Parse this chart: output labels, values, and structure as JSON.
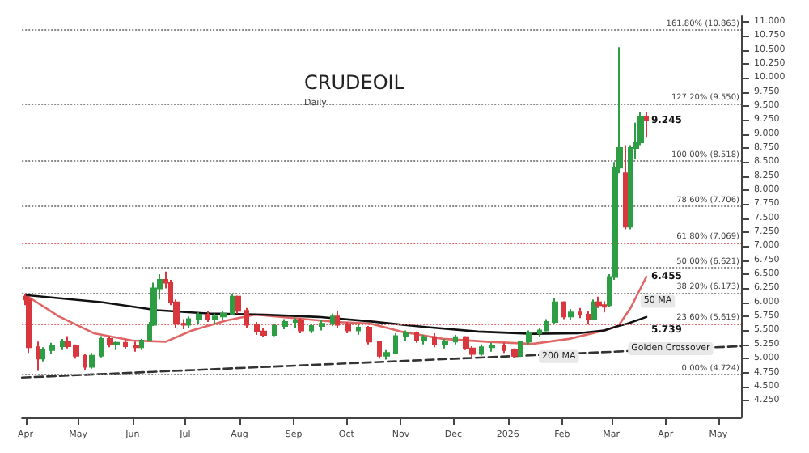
{
  "chart_data": {
    "type": "candlestick",
    "title": "CRUDEOIL",
    "subtitle": "Daily",
    "xlim": [
      "2025-03-30",
      "2026-05-14"
    ],
    "xticks": [
      {
        "value": "2025-04-01",
        "label": "Apr"
      },
      {
        "value": "2025-05-01",
        "label": "May"
      },
      {
        "value": "2025-06-01",
        "label": "Jun"
      },
      {
        "value": "2025-07-01",
        "label": "Jul"
      },
      {
        "value": "2025-08-01",
        "label": "Aug"
      },
      {
        "value": "2025-09-01",
        "label": "Sep"
      },
      {
        "value": "2025-10-01",
        "label": "Oct"
      },
      {
        "value": "2025-11-01",
        "label": "Nov"
      },
      {
        "value": "2025-12-01",
        "label": "Dec"
      },
      {
        "value": "2026-01-01",
        "label": "2026"
      },
      {
        "value": "2026-02-01",
        "label": "Feb"
      },
      {
        "value": "2026-03-01",
        "label": "Mar"
      },
      {
        "value": "2026-04-01",
        "label": "Apr"
      },
      {
        "value": "2026-05-01",
        "label": "May"
      }
    ],
    "ylim": [
      3.95,
      11.1
    ],
    "yticks": [
      {
        "value": 4.25,
        "label": "4.250"
      },
      {
        "value": 4.5,
        "label": "4.500"
      },
      {
        "value": 4.75,
        "label": "4.750"
      },
      {
        "value": 5,
        "label": "5.000"
      },
      {
        "value": 5.25,
        "label": "5.250"
      },
      {
        "value": 5.5,
        "label": "5.500"
      },
      {
        "value": 5.75,
        "label": "5.750"
      },
      {
        "value": 6,
        "label": "6.000"
      },
      {
        "value": 6.25,
        "label": "6.250"
      },
      {
        "value": 6.5,
        "label": "6.500"
      },
      {
        "value": 6.75,
        "label": "6.750"
      },
      {
        "value": 7,
        "label": "7.000"
      },
      {
        "value": 7.25,
        "label": "7.250"
      },
      {
        "value": 7.5,
        "label": "7.500"
      },
      {
        "value": 7.75,
        "label": "7.750"
      },
      {
        "value": 8,
        "label": "8.000"
      },
      {
        "value": 8.25,
        "label": "8.250"
      },
      {
        "value": 8.5,
        "label": "8.500"
      },
      {
        "value": 8.75,
        "label": "8.750"
      },
      {
        "value": 9,
        "label": "9.000"
      },
      {
        "value": 9.25,
        "label": "9.250"
      },
      {
        "value": 9.5,
        "label": "9.500"
      },
      {
        "value": 9.75,
        "label": "9.750"
      },
      {
        "value": 10,
        "label": "10.000"
      },
      {
        "value": 10.25,
        "label": "10.250"
      },
      {
        "value": 10.5,
        "label": "10.500"
      },
      {
        "value": 10.75,
        "label": "10.750"
      },
      {
        "value": 11,
        "label": "11.000"
      }
    ],
    "grid": false,
    "series": [
      {
        "type": "candlestick",
        "x": [
          "2025-04-01",
          "2025-04-03",
          "2025-04-08",
          "2025-04-11",
          "2025-04-16",
          "2025-04-22",
          "2025-04-25",
          "2025-04-30",
          "2025-05-05",
          "2025-05-09",
          "2025-05-14",
          "2025-05-19",
          "2025-05-23",
          "2025-05-28",
          "2025-06-03",
          "2025-06-06",
          "2025-06-11",
          "2025-06-13",
          "2025-06-17",
          "2025-06-20",
          "2025-06-23",
          "2025-06-26",
          "2025-06-30",
          "2025-07-03",
          "2025-07-09",
          "2025-07-14",
          "2025-07-18",
          "2025-07-23",
          "2025-07-28",
          "2025-07-31",
          "2025-08-05",
          "2025-08-11",
          "2025-08-15",
          "2025-08-21",
          "2025-08-27",
          "2025-09-02",
          "2025-09-05",
          "2025-09-11",
          "2025-09-17",
          "2025-09-23",
          "2025-09-26",
          "2025-10-02",
          "2025-10-08",
          "2025-10-14",
          "2025-10-20",
          "2025-10-24",
          "2025-10-29",
          "2025-11-04",
          "2025-11-10",
          "2025-11-14",
          "2025-11-20",
          "2025-11-26",
          "2025-12-02",
          "2025-12-08",
          "2025-12-12",
          "2025-12-17",
          "2025-12-23",
          "2025-12-30",
          "2026-01-05",
          "2026-01-08",
          "2026-01-13",
          "2026-01-19",
          "2026-01-23",
          "2026-01-28",
          "2026-02-02",
          "2026-02-06",
          "2026-02-11",
          "2026-02-16",
          "2026-02-19",
          "2026-02-22",
          "2026-02-25",
          "2026-02-28",
          "2026-03-03",
          "2026-03-06",
          "2026-03-09",
          "2026-03-12",
          "2026-03-15",
          "2026-03-18",
          "2026-03-21"
        ],
        "ohlc": [
          [
            6.1,
            6.15,
            5.95,
            6.05
          ],
          [
            6.05,
            6.08,
            5.1,
            5.2
          ],
          [
            5.2,
            5.3,
            4.78,
            5.0
          ],
          [
            5.0,
            5.2,
            4.95,
            5.15
          ],
          [
            5.15,
            5.28,
            5.08,
            5.22
          ],
          [
            5.22,
            5.35,
            5.15,
            5.3
          ],
          [
            5.3,
            5.4,
            5.18,
            5.22
          ],
          [
            5.22,
            5.25,
            5.0,
            5.05
          ],
          [
            5.05,
            5.08,
            4.8,
            4.85
          ],
          [
            4.85,
            5.1,
            4.82,
            5.05
          ],
          [
            5.05,
            5.4,
            5.02,
            5.35
          ],
          [
            5.35,
            5.4,
            5.2,
            5.25
          ],
          [
            5.25,
            5.32,
            5.15,
            5.28
          ],
          [
            5.28,
            5.35,
            5.18,
            5.22
          ],
          [
            5.22,
            5.3,
            5.12,
            5.2
          ],
          [
            5.2,
            5.35,
            5.15,
            5.32
          ],
          [
            5.32,
            5.65,
            5.3,
            5.6
          ],
          [
            5.6,
            6.35,
            5.58,
            6.25
          ],
          [
            6.25,
            6.5,
            6.05,
            6.4
          ],
          [
            6.4,
            6.55,
            6.25,
            6.35
          ],
          [
            6.35,
            6.4,
            5.95,
            6.0
          ],
          [
            6.0,
            6.05,
            5.55,
            5.62
          ],
          [
            5.62,
            5.7,
            5.52,
            5.6
          ],
          [
            5.6,
            5.75,
            5.55,
            5.7
          ],
          [
            5.7,
            5.82,
            5.62,
            5.78
          ],
          [
            5.78,
            5.85,
            5.65,
            5.7
          ],
          [
            5.7,
            5.8,
            5.6,
            5.75
          ],
          [
            5.75,
            5.85,
            5.68,
            5.8
          ],
          [
            5.8,
            6.15,
            5.78,
            6.1
          ],
          [
            6.1,
            6.12,
            5.8,
            5.85
          ],
          [
            5.85,
            5.9,
            5.55,
            5.6
          ],
          [
            5.6,
            5.65,
            5.42,
            5.48
          ],
          [
            5.48,
            5.55,
            5.38,
            5.42
          ],
          [
            5.42,
            5.62,
            5.4,
            5.58
          ],
          [
            5.58,
            5.7,
            5.52,
            5.65
          ],
          [
            5.65,
            5.72,
            5.55,
            5.68
          ],
          [
            5.68,
            5.72,
            5.45,
            5.5
          ],
          [
            5.5,
            5.62,
            5.45,
            5.58
          ],
          [
            5.58,
            5.68,
            5.5,
            5.62
          ],
          [
            5.62,
            5.8,
            5.58,
            5.75
          ],
          [
            5.75,
            5.85,
            5.55,
            5.6
          ],
          [
            5.6,
            5.65,
            5.45,
            5.5
          ],
          [
            5.5,
            5.62,
            5.42,
            5.55
          ],
          [
            5.55,
            5.58,
            5.25,
            5.3
          ],
          [
            5.3,
            5.32,
            5.0,
            5.05
          ],
          [
            5.05,
            5.15,
            4.98,
            5.1
          ],
          [
            5.1,
            5.45,
            5.08,
            5.4
          ],
          [
            5.4,
            5.5,
            5.32,
            5.45
          ],
          [
            5.45,
            5.48,
            5.28,
            5.32
          ],
          [
            5.32,
            5.42,
            5.25,
            5.38
          ],
          [
            5.38,
            5.45,
            5.2,
            5.25
          ],
          [
            5.25,
            5.35,
            5.18,
            5.3
          ],
          [
            5.3,
            5.42,
            5.25,
            5.38
          ],
          [
            5.38,
            5.4,
            5.15,
            5.18
          ],
          [
            5.18,
            5.22,
            5.02,
            5.08
          ],
          [
            5.08,
            5.25,
            5.05,
            5.2
          ],
          [
            5.2,
            5.28,
            5.12,
            5.22
          ],
          [
            5.22,
            5.28,
            5.1,
            5.15
          ],
          [
            5.15,
            5.18,
            5.02,
            5.05
          ],
          [
            5.05,
            5.32,
            5.03,
            5.3
          ],
          [
            5.3,
            5.5,
            5.25,
            5.45
          ],
          [
            5.45,
            5.55,
            5.38,
            5.5
          ],
          [
            5.5,
            5.7,
            5.48,
            5.65
          ],
          [
            5.65,
            6.08,
            5.62,
            6.0
          ],
          [
            6.0,
            6.02,
            5.7,
            5.75
          ],
          [
            5.75,
            5.88,
            5.68,
            5.82
          ],
          [
            5.82,
            5.9,
            5.72,
            5.78
          ],
          [
            5.78,
            5.85,
            5.62,
            5.7
          ],
          [
            5.7,
            6.05,
            5.68,
            6.0
          ],
          [
            6.0,
            6.1,
            5.9,
            5.95
          ],
          [
            5.95,
            6.02,
            5.82,
            5.92
          ],
          [
            5.95,
            6.5,
            5.92,
            6.45
          ],
          [
            6.45,
            8.5,
            6.4,
            8.4
          ],
          [
            8.4,
            10.55,
            8.3,
            8.75
          ],
          [
            8.3,
            8.8,
            7.3,
            7.35
          ],
          [
            7.35,
            8.8,
            7.3,
            8.75
          ],
          [
            8.75,
            9.2,
            8.55,
            8.85
          ],
          [
            8.85,
            9.4,
            8.8,
            9.3
          ],
          [
            9.3,
            9.4,
            8.95,
            9.245
          ]
        ]
      },
      {
        "type": "line",
        "color": "#e06666",
        "x": [
          "2025-04-01",
          "2025-04-20",
          "2025-05-10",
          "2025-06-01",
          "2025-06-20",
          "2025-07-05",
          "2025-07-25",
          "2025-08-10",
          "2025-09-01",
          "2025-09-25",
          "2025-10-15",
          "2025-11-01",
          "2025-11-25",
          "2025-12-20",
          "2026-01-15",
          "2026-02-05",
          "2026-02-25",
          "2026-03-05",
          "2026-03-12",
          "2026-03-21"
        ],
        "values": [
          6.13,
          5.75,
          5.45,
          5.32,
          5.3,
          5.5,
          5.68,
          5.78,
          5.72,
          5.65,
          5.62,
          5.48,
          5.35,
          5.3,
          5.26,
          5.35,
          5.5,
          5.58,
          5.9,
          6.455
        ]
      },
      {
        "type": "line",
        "color": "#111111",
        "x": [
          "2025-04-01",
          "2025-05-15",
          "2025-06-15",
          "2025-07-15",
          "2025-08-15",
          "2025-09-15",
          "2025-10-15",
          "2025-11-15",
          "2025-12-15",
          "2026-01-15",
          "2026-02-10",
          "2026-02-25",
          "2026-03-05",
          "2026-03-10",
          "2026-03-21"
        ],
        "values": [
          6.13,
          6.0,
          5.86,
          5.8,
          5.78,
          5.74,
          5.66,
          5.56,
          5.48,
          5.44,
          5.45,
          5.5,
          5.58,
          5.62,
          5.739
        ]
      },
      {
        "type": "line",
        "color": "#333333",
        "line_style": "dashed",
        "x": [
          "2025-03-30",
          "2026-05-14"
        ],
        "values": [
          4.66,
          5.22
        ]
      }
    ],
    "ref_lines": [
      {
        "axis": "y",
        "value": 10.863,
        "label": "161.80% (10.863)",
        "color": "#888888",
        "line_style": "dotted"
      },
      {
        "axis": "y",
        "value": 9.55,
        "label": "127.20% (9.550)",
        "color": "#888888",
        "line_style": "dotted"
      },
      {
        "axis": "y",
        "value": 8.518,
        "label": "100.00% (8.518)",
        "color": "#888888",
        "line_style": "dotted"
      },
      {
        "axis": "y",
        "value": 7.706,
        "label": "78.60% (7.706)",
        "color": "#888888",
        "line_style": "dotted"
      },
      {
        "axis": "y",
        "value": 7.069,
        "label": "61.80% (7.069)",
        "color": "#e06666",
        "line_style": "dotted"
      },
      {
        "axis": "y",
        "value": 6.621,
        "label": "50.00% (6.621)",
        "color": "#888888",
        "line_style": "dotted"
      },
      {
        "axis": "y",
        "value": 6.173,
        "label": "38.20% (6.173)",
        "color": "#888888",
        "line_style": "dotted"
      },
      {
        "axis": "y",
        "value": 5.619,
        "label": "23.60% (5.619)",
        "color": "#e06666",
        "line_style": "dotted"
      },
      {
        "axis": "y",
        "value": 4.724,
        "label": "0.00% (4.724)",
        "color": "#888888",
        "line_style": "dotted"
      }
    ],
    "annotations": [
      {
        "text": "50 MA",
        "x": "2026-03-14",
        "y": 6.02
      },
      {
        "text": "Golden Crossover",
        "x": "2026-03-05",
        "y": 5.58
      },
      {
        "text": "200 MA",
        "x": "2026-01-15",
        "y": 5.44
      },
      {
        "text": "9.245",
        "x": "2026-03-21",
        "y": 9.245
      },
      {
        "text": "6.455",
        "x": "2026-03-21",
        "y": 6.455
      },
      {
        "text": "5.739",
        "x": "2026-03-21",
        "y": 5.739
      }
    ]
  }
}
